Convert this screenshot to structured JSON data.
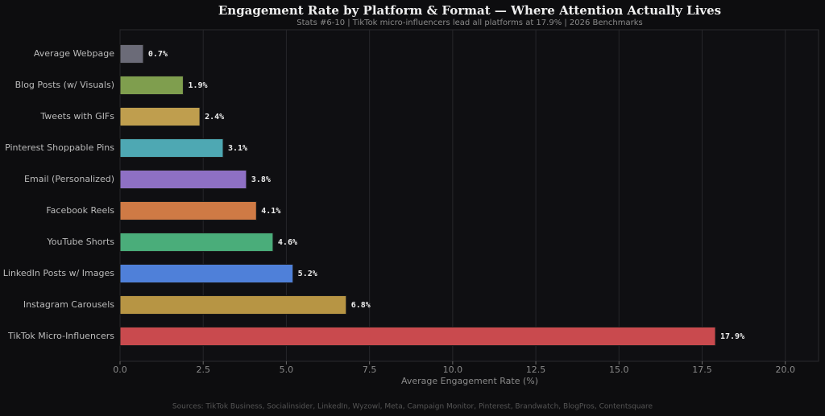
{
  "chart_data": {
    "type": "barh",
    "title": "Engagement Rate by Platform & Format  —  Where Attention Actually Lives",
    "subtitle": "Stats #6-10  |  TikTok micro-influencers lead all platforms at 17.9%  |  2026 Benchmarks",
    "x_label": "Average Engagement Rate (%)",
    "source": "Sources: TikTok Business, Socialinsider, LinkedIn, Wyzowl, Meta, Campaign Monitor, Pinterest, Brandwatch, BlogPros, Contentsquare",
    "categories": [
      "Average Webpage",
      "Blog Posts (w/ Visuals)",
      "Tweets with GIFs",
      "Pinterest Shoppable Pins",
      "Email (Personalized)",
      "Facebook Reels",
      "YouTube Shorts",
      "LinkedIn Posts w/ Images",
      "Instagram Carousels",
      "TikTok Micro-Influencers"
    ],
    "values": [
      0.7,
      1.9,
      2.4,
      3.1,
      3.8,
      4.1,
      4.6,
      5.2,
      6.8,
      17.9
    ],
    "value_labels": [
      "0.7%",
      "1.9%",
      "2.4%",
      "3.1%",
      "3.8%",
      "4.1%",
      "4.6%",
      "5.2%",
      "6.8%",
      "17.9%"
    ],
    "colors": [
      "#6b6b78",
      "#7f9e4e",
      "#bf9e4e",
      "#4ea8b3",
      "#8e70c4",
      "#cf7a45",
      "#4aad7a",
      "#4f80d9",
      "#b79544",
      "#c94a4e"
    ],
    "xlim": [
      0,
      21
    ],
    "xticks": [
      {
        "value": 0,
        "label": "0.0"
      },
      2.5,
      {
        "value": 5,
        "label": "5.0"
      },
      7.5,
      {
        "value": 10,
        "label": "10.0"
      },
      12.5,
      {
        "value": 15,
        "label": "15.0"
      },
      17.5,
      {
        "value": 20,
        "label": "20.0"
      }
    ],
    "grid": true
  }
}
